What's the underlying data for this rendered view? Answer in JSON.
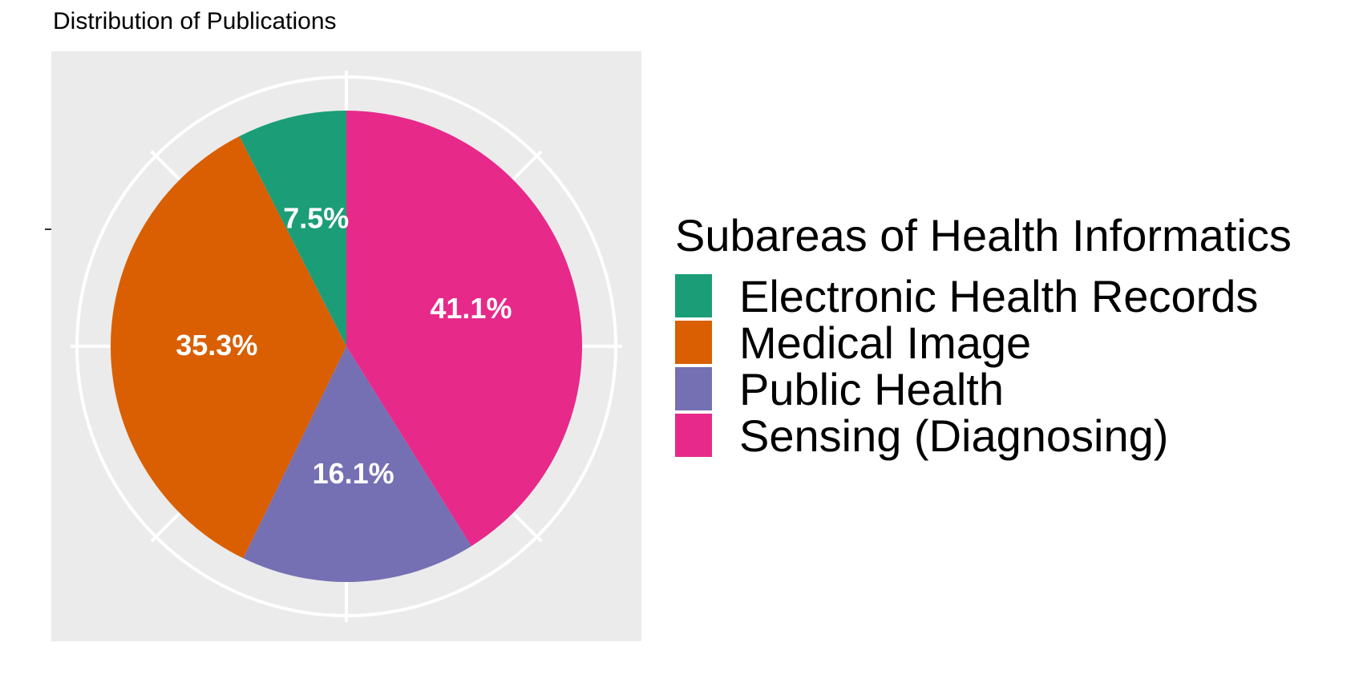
{
  "chart_data": {
    "type": "pie",
    "title": "Distribution of Publications",
    "legend_title": "Subareas of Health Informatics",
    "legend_position": "right",
    "slices": [
      {
        "label": "Electronic Health Records",
        "value": 7.5,
        "text": "7.5%",
        "color": "#1b9e77"
      },
      {
        "label": "Medical Image",
        "value": 35.3,
        "text": "35.3%",
        "color": "#d95f02"
      },
      {
        "label": "Public Health",
        "value": 16.1,
        "text": "16.1%",
        "color": "#7570b3"
      },
      {
        "label": "Sensing (Diagnosing)",
        "value": 41.1,
        "text": "41.1%",
        "color": "#e7298a"
      }
    ],
    "panel_background": "#ebebeb",
    "grid": true
  }
}
